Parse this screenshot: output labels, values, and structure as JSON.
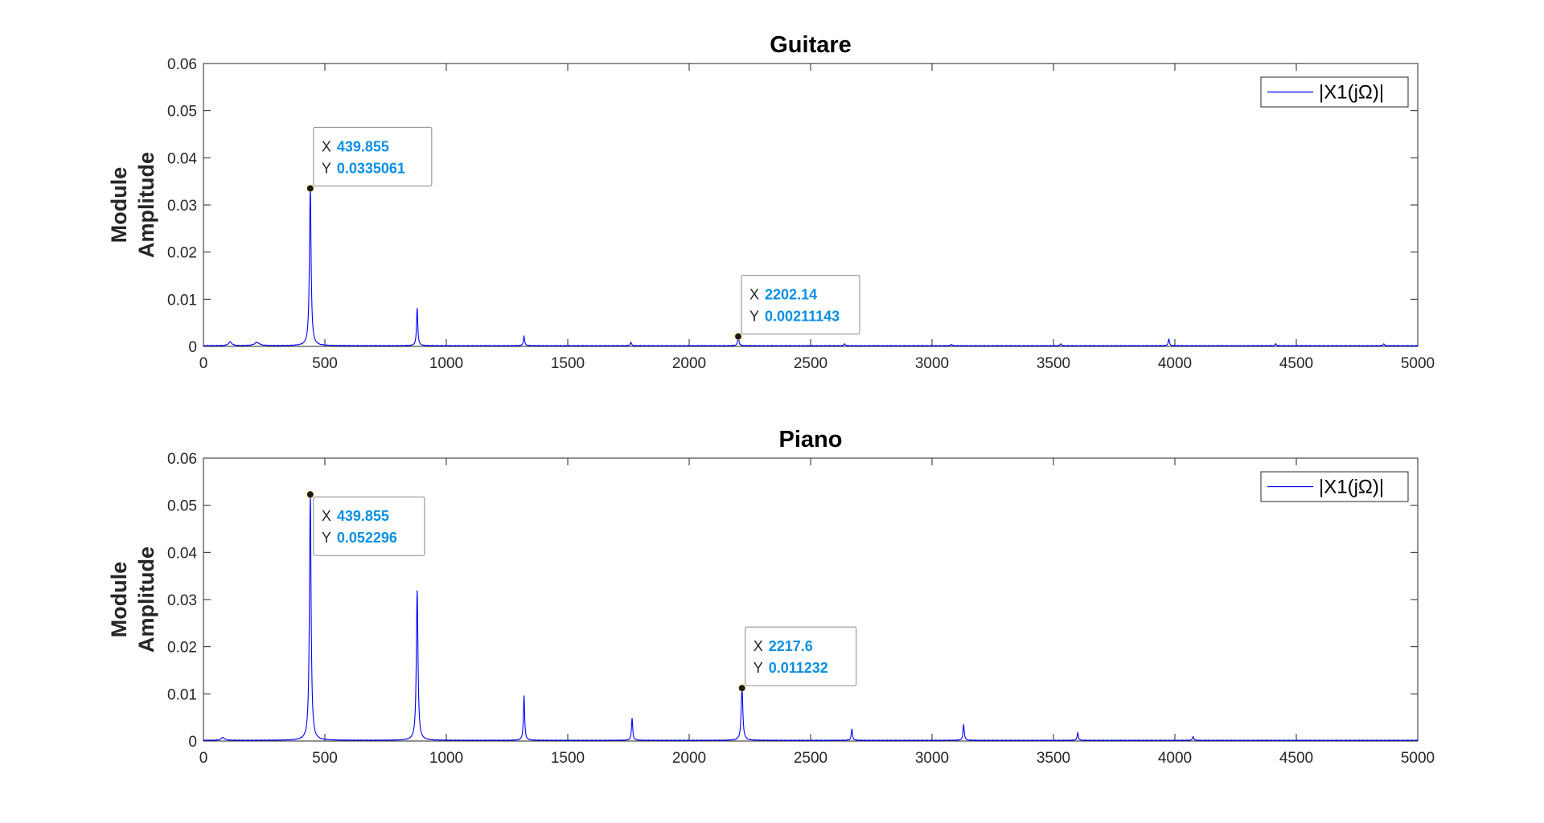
{
  "colors": {
    "line": "#0000ff",
    "axes": "#262626",
    "datatip_value": "#0a8fe6",
    "datatip_marker": "#1a1a1a",
    "datatip_bg": "#ffffff",
    "datatip_border": "#8a8a8a"
  },
  "chart_data": [
    {
      "type": "line",
      "title": "Guitare",
      "ylabel_lines": [
        "Module",
        "Amplitude"
      ],
      "xlabel": "",
      "xlim": [
        0,
        5000
      ],
      "ylim": [
        0,
        0.06
      ],
      "xticks": [
        0,
        500,
        1000,
        1500,
        2000,
        2500,
        3000,
        3500,
        4000,
        4500,
        5000
      ],
      "yticks": [
        0,
        0.01,
        0.02,
        0.03,
        0.04,
        0.05,
        0.06
      ],
      "ytick_labels": [
        "0",
        "0.01",
        "0.02",
        "0.03",
        "0.04",
        "0.05",
        "0.06"
      ],
      "grid": false,
      "legend": {
        "entries": [
          "|X1(jΩ)|"
        ],
        "location": "top-right"
      },
      "series": [
        {
          "name": "|X1(jΩ)|",
          "peaks": [
            {
              "x": 110,
              "y": 0.0008,
              "w": 8
            },
            {
              "x": 220,
              "y": 0.0007,
              "w": 12
            },
            {
              "x": 439.855,
              "y": 0.0335061,
              "w": 4
            },
            {
              "x": 880,
              "y": 0.008,
              "w": 3
            },
            {
              "x": 1320,
              "y": 0.002,
              "w": 3
            },
            {
              "x": 1760,
              "y": 0.0007,
              "w": 3
            },
            {
              "x": 2202.14,
              "y": 0.00211143,
              "w": 3
            },
            {
              "x": 2640,
              "y": 0.0004,
              "w": 3
            },
            {
              "x": 3080,
              "y": 0.0003,
              "w": 3
            },
            {
              "x": 3530,
              "y": 0.0004,
              "w": 3
            },
            {
              "x": 3975,
              "y": 0.0014,
              "w": 3
            },
            {
              "x": 4415,
              "y": 0.0004,
              "w": 3
            },
            {
              "x": 4860,
              "y": 0.0004,
              "w": 3
            }
          ]
        }
      ],
      "datatips": [
        {
          "x_label": "X",
          "y_label": "Y",
          "x": 439.855,
          "y": 0.0335061,
          "x_text": "439.855",
          "y_text": "0.0335061",
          "placement": "above-right"
        },
        {
          "x_label": "X",
          "y_label": "Y",
          "x": 2202.14,
          "y": 0.00211143,
          "x_text": "2202.14",
          "y_text": "0.00211143",
          "placement": "above-right"
        }
      ]
    },
    {
      "type": "line",
      "title": "Piano",
      "ylabel_lines": [
        "Module",
        "Amplitude"
      ],
      "xlabel": "",
      "xlim": [
        0,
        5000
      ],
      "ylim": [
        0,
        0.06
      ],
      "xticks": [
        0,
        500,
        1000,
        1500,
        2000,
        2500,
        3000,
        3500,
        4000,
        4500,
        5000
      ],
      "yticks": [
        0,
        0.01,
        0.02,
        0.03,
        0.04,
        0.05,
        0.06
      ],
      "ytick_labels": [
        "0",
        "0.01",
        "0.02",
        "0.03",
        "0.04",
        "0.05",
        "0.06"
      ],
      "grid": false,
      "legend": {
        "entries": [
          "|X1(jΩ)|"
        ],
        "location": "top-right"
      },
      "series": [
        {
          "name": "|X1(jΩ)|",
          "peaks": [
            {
              "x": 80,
              "y": 0.0006,
              "w": 8
            },
            {
              "x": 439.855,
              "y": 0.052296,
              "w": 4
            },
            {
              "x": 880,
              "y": 0.0318,
              "w": 4
            },
            {
              "x": 1320,
              "y": 0.0095,
              "w": 3
            },
            {
              "x": 1765,
              "y": 0.0047,
              "w": 3
            },
            {
              "x": 2217.6,
              "y": 0.011232,
              "w": 4
            },
            {
              "x": 2670,
              "y": 0.0024,
              "w": 3
            },
            {
              "x": 3130,
              "y": 0.0034,
              "w": 3
            },
            {
              "x": 3600,
              "y": 0.0016,
              "w": 3
            },
            {
              "x": 4075,
              "y": 0.0008,
              "w": 3
            }
          ]
        }
      ],
      "datatips": [
        {
          "x_label": "X",
          "y_label": "Y",
          "x": 439.855,
          "y": 0.052296,
          "x_text": "439.855",
          "y_text": "0.052296",
          "placement": "below-right"
        },
        {
          "x_label": "X",
          "y_label": "Y",
          "x": 2217.6,
          "y": 0.011232,
          "x_text": "2217.6",
          "y_text": "0.011232",
          "placement": "above-right"
        }
      ]
    }
  ]
}
